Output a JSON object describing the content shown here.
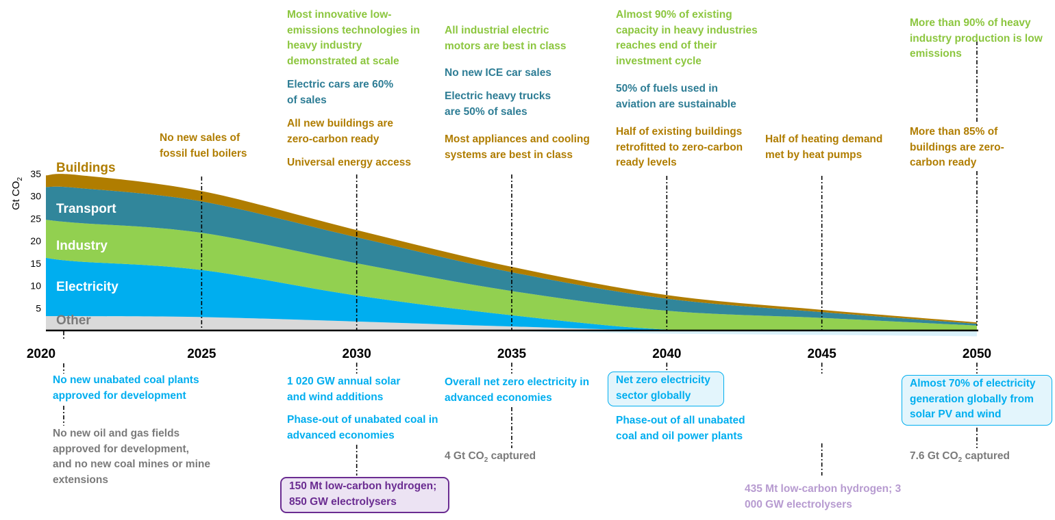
{
  "chart_data": {
    "type": "area",
    "ylabel": "Gt CO2",
    "ylim": [
      0,
      35
    ],
    "yticks": [
      5,
      10,
      15,
      20,
      25,
      30,
      35
    ],
    "years": [
      2020,
      2025,
      2030,
      2035,
      2040,
      2045,
      2050
    ],
    "x": [
      2020,
      2021,
      2025,
      2030,
      2035,
      2040,
      2045,
      2050
    ],
    "series": [
      {
        "name": "Other",
        "color": "#d9d9d9",
        "values": [
          3.2,
          3.2,
          3.0,
          2.0,
          0.9,
          0.0,
          0.0,
          0.0
        ]
      },
      {
        "name": "Electricity",
        "color": "#00aeef",
        "values": [
          13.0,
          12.2,
          10.5,
          5.8,
          2.5,
          0.2,
          0.2,
          0.1
        ]
      },
      {
        "name": "Industry",
        "color": "#92d050",
        "values": [
          8.5,
          8.6,
          8.3,
          7.2,
          5.4,
          4.2,
          2.6,
          1.0
        ]
      },
      {
        "name": "Transport",
        "color": "#31869b",
        "values": [
          7.3,
          7.8,
          7.0,
          5.8,
          4.2,
          2.7,
          1.3,
          0.4
        ]
      },
      {
        "name": "Buildings",
        "color": "#b07d00",
        "values": [
          2.6,
          2.9,
          2.3,
          1.6,
          1.2,
          0.8,
          0.5,
          0.3
        ]
      }
    ],
    "negative_band": {
      "name": "Electricity (negative)",
      "values": [
        0,
        0,
        0,
        0,
        -0.2,
        -0.7,
        -1.0,
        -1.3
      ]
    }
  },
  "labels": {
    "ylabel_main": "Gt CO",
    "ylabel_sub": "2",
    "bands": [
      "Buildings",
      "Transport",
      "Industry",
      "Electricity",
      "Other"
    ]
  },
  "top": {
    "y2025": {
      "brown": "No new sales of fossil fuel boilers"
    },
    "y2030": {
      "green": "Most innovative low-emissions technologies in heavy industry demonstrated at scale",
      "teal": "Electric cars are 60% of sales",
      "brown1": "All new buildings are zero-carbon ready",
      "brown2": "Universal energy access"
    },
    "y2035": {
      "green": "All industrial electric motors are best in class",
      "teal1": "No new ICE car sales",
      "teal2": "Electric heavy trucks are 50% of sales",
      "brown": "Most appliances and cooling systems are best in class"
    },
    "y2040": {
      "green": "Almost 90% of existing capacity in heavy industries reaches end of their investment cycle",
      "teal": "50% of fuels used in aviation are sustainable",
      "brown": "Half of existing buildings retrofitted to zero-carbon ready levels"
    },
    "y2045": {
      "brown": "Half of heating demand met by heat pumps"
    },
    "y2050": {
      "green": "More than 90% of heavy industry production is low emissions",
      "brown": "More than 85% of buildings are zero-carbon ready"
    }
  },
  "bottom": {
    "y2020": {
      "blue": "No new unabated coal plants approved for development",
      "gray": "No new oil and gas fields approved for development, and no new coal mines or mine extensions"
    },
    "y2030": {
      "blue1": "1 020 GW annual solar and wind additions",
      "blue2": "Phase-out of unabated coal in advanced economies",
      "purple": "150 Mt low-carbon hydrogen; 850 GW electrolysers"
    },
    "y2035": {
      "blue": "Overall net zero electricity in advanced economies",
      "gray_pre": "4 Gt CO",
      "gray_sub": "2",
      "gray_post": " captured"
    },
    "y2040": {
      "blue_box": "Net zero electricity sector globally",
      "blue": "Phase-out of all unabated coal and oil power plants"
    },
    "y2045": {
      "lilac": "435 Mt low-carbon hydrogen; 3 000 GW electrolysers"
    },
    "y2050": {
      "blue_box": "Almost 70% of electricity generation globally from solar PV and wind",
      "gray_pre": "7.6 Gt CO",
      "gray_sub": "2",
      "gray_post": " captured"
    }
  }
}
